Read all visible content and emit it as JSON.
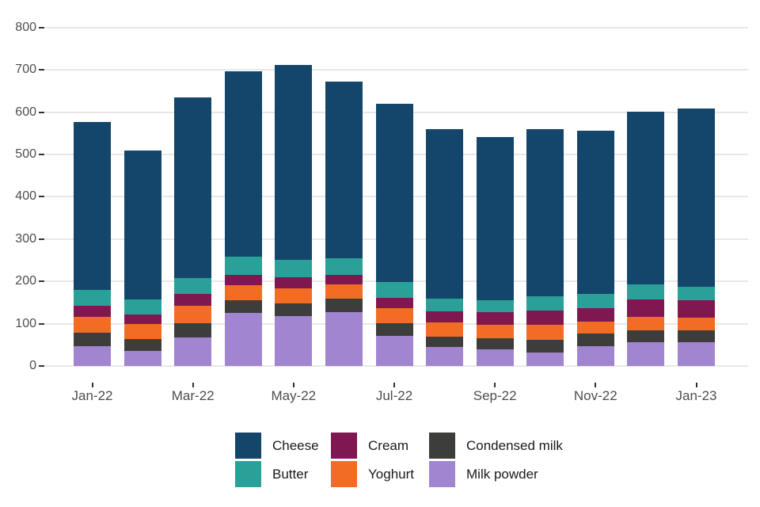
{
  "chart_data": {
    "type": "bar",
    "stacked": true,
    "title": "",
    "xlabel": "",
    "ylabel": "",
    "ylim": [
      0,
      800
    ],
    "y_ticks": [
      0,
      100,
      200,
      300,
      400,
      500,
      600,
      700,
      800
    ],
    "grid": "horizontal-only",
    "categories": [
      "Jan-22",
      "Feb-22",
      "Mar-22",
      "Apr-22",
      "May-22",
      "Jun-22",
      "Jul-22",
      "Aug-22",
      "Sep-22",
      "Oct-22",
      "Nov-22",
      "Dec-22",
      "Jan-23"
    ],
    "x_tick_indices": [
      0,
      2,
      4,
      6,
      8,
      10,
      12
    ],
    "x_tick_labels": [
      "Jan-22",
      "Mar-22",
      "May-22",
      "Jul-22",
      "Sep-22",
      "Nov-22",
      "Jan-23"
    ],
    "stack_order_bottom_to_top": [
      "Milk powder",
      "Condensed milk",
      "Yoghurt",
      "Cream",
      "Butter",
      "Cheese"
    ],
    "series": [
      {
        "name": "Milk powder",
        "color": "#A285D1",
        "values": [
          47,
          35,
          67,
          125,
          117,
          128,
          71,
          45,
          39,
          31,
          47,
          57,
          57
        ]
      },
      {
        "name": "Condensed milk",
        "color": "#3D3D3C",
        "values": [
          32,
          29,
          35,
          31,
          30,
          31,
          30,
          24,
          27,
          31,
          29,
          28,
          27
        ]
      },
      {
        "name": "Yoghurt",
        "color": "#F36C23",
        "values": [
          38,
          36,
          40,
          34,
          37,
          34,
          36,
          34,
          32,
          36,
          28,
          32,
          31
        ]
      },
      {
        "name": "Cream",
        "color": "#7F1850",
        "values": [
          26,
          22,
          28,
          26,
          26,
          23,
          25,
          27,
          30,
          33,
          33,
          40,
          41
        ]
      },
      {
        "name": "Butter",
        "color": "#2AA198",
        "values": [
          37,
          35,
          38,
          42,
          41,
          38,
          36,
          29,
          28,
          34,
          34,
          35,
          32
        ]
      },
      {
        "name": "Cheese",
        "color": "#14466B",
        "values": [
          397,
          353,
          427,
          439,
          461,
          419,
          422,
          401,
          386,
          394,
          386,
          410,
          420
        ]
      }
    ],
    "totals": [
      577,
      510,
      635,
      697,
      712,
      673,
      620,
      560,
      542,
      559,
      557,
      602,
      608
    ],
    "legend_position": "bottom",
    "legend_columns": [
      [
        "Cheese",
        "Butter"
      ],
      [
        "Cream",
        "Yoghurt"
      ],
      [
        "Condensed milk",
        "Milk powder"
      ]
    ]
  },
  "colors": {
    "background": "#FFFFFF",
    "gridline": "#E8E8E8",
    "axis_text": "#4D4D4D",
    "tick_mark": "#333333",
    "legend_text": "#1A1A1A"
  }
}
